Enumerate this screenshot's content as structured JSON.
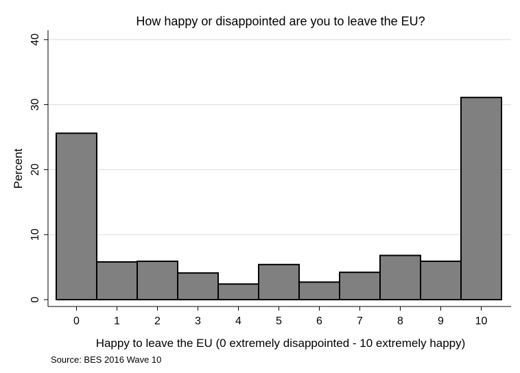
{
  "chart_data": {
    "type": "bar",
    "title": "How happy or disappointed are you to leave the EU?",
    "xlabel": "Happy to leave the EU (0 extremely disappointed - 10 extremely happy)",
    "ylabel": "Percent",
    "source": "Source: BES 2016 Wave 10",
    "categories": [
      "0",
      "1",
      "2",
      "3",
      "4",
      "5",
      "6",
      "7",
      "8",
      "9",
      "10"
    ],
    "values": [
      25.6,
      5.8,
      5.9,
      4.1,
      2.4,
      5.4,
      2.7,
      4.2,
      6.8,
      5.9,
      31.1
    ],
    "ylim": [
      0,
      40
    ],
    "yticks": [
      0,
      10,
      20,
      30,
      40
    ],
    "grid": true,
    "colors": {
      "bar_fill": "#808080",
      "bar_stroke": "#000000",
      "grid": "#dcdcdc",
      "axis": "#000000"
    }
  }
}
